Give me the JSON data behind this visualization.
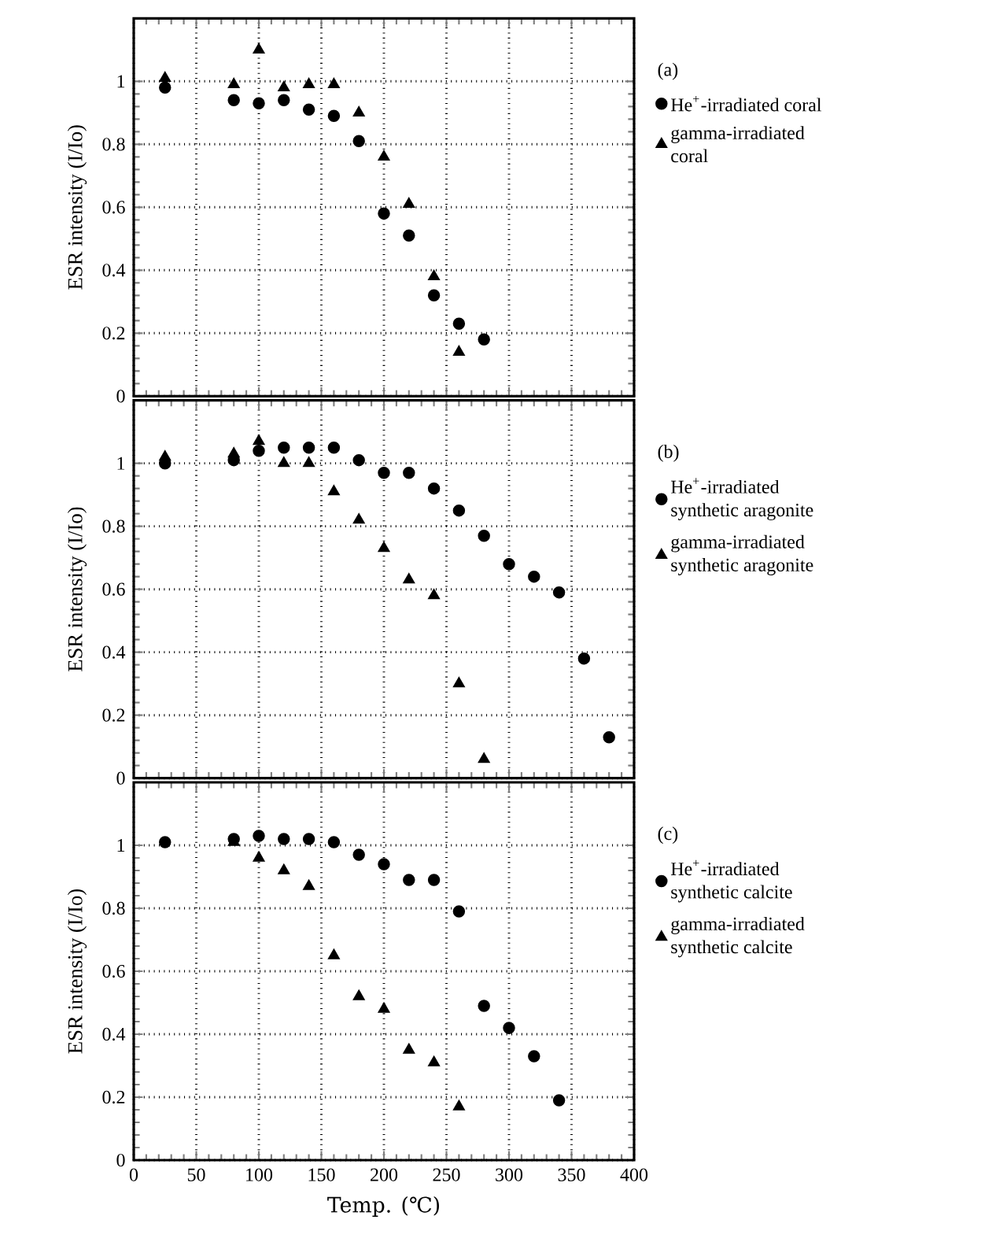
{
  "chart_data": [
    {
      "type": "scatter",
      "annotations": [
        "(a)"
      ],
      "ylabel": "ESR intensity (I/Io)",
      "xlim": [
        0,
        400
      ],
      "ylim": [
        0,
        1.2
      ],
      "xticks": [
        0,
        50,
        100,
        150,
        200,
        250,
        300,
        350,
        400
      ],
      "yticks": [
        0,
        0.2,
        0.4,
        0.6,
        0.8,
        1
      ],
      "tick_labels": "y",
      "grid": true,
      "legend": "right",
      "series": [
        {
          "name": "He$^{+}$-irradiated coral",
          "color": "#000000",
          "marker": "circle",
          "x": [
            25,
            80,
            100,
            120,
            140,
            160,
            180,
            200,
            220,
            240,
            260,
            280
          ],
          "values": [
            0.98,
            0.94,
            0.93,
            0.94,
            0.91,
            0.89,
            0.81,
            0.58,
            0.51,
            0.32,
            0.23,
            0.18
          ]
        },
        {
          "name": "gamma-irradiated coral",
          "color": "#000000",
          "marker": "triangle",
          "x": [
            25,
            80,
            100,
            120,
            140,
            160,
            180,
            200,
            220,
            240,
            260
          ],
          "values": [
            1.01,
            0.99,
            1.1,
            0.98,
            0.99,
            0.99,
            0.9,
            0.76,
            0.61,
            0.38,
            0.14
          ]
        }
      ]
    },
    {
      "type": "scatter",
      "annotations": [
        "(b)"
      ],
      "ylabel": "ESR intensity (I/Io)",
      "xlim": [
        0,
        400
      ],
      "ylim": [
        0,
        1.2
      ],
      "xticks": [
        0,
        50,
        100,
        150,
        200,
        250,
        300,
        350,
        400
      ],
      "yticks": [
        0,
        0.2,
        0.4,
        0.6,
        0.8,
        1
      ],
      "tick_labels": "y",
      "grid": true,
      "legend": "right",
      "series": [
        {
          "name": "He$^{+}$-irradiated synthetic aragonite",
          "color": "#000000",
          "marker": "circle",
          "x": [
            25,
            80,
            100,
            120,
            140,
            160,
            180,
            200,
            220,
            240,
            260,
            280,
            300,
            320,
            340,
            360,
            380
          ],
          "values": [
            1.0,
            1.01,
            1.04,
            1.05,
            1.05,
            1.05,
            1.01,
            0.97,
            0.97,
            0.92,
            0.85,
            0.77,
            0.68,
            0.64,
            0.59,
            0.38,
            0.13
          ]
        },
        {
          "name": "gamma-irradiated synthetic aragonite",
          "color": "#000000",
          "marker": "triangle",
          "x": [
            25,
            80,
            100,
            120,
            140,
            160,
            180,
            200,
            220,
            240,
            260,
            280
          ],
          "values": [
            1.02,
            1.03,
            1.07,
            1.0,
            1.0,
            0.91,
            0.82,
            0.73,
            0.63,
            0.58,
            0.3,
            0.06
          ]
        }
      ]
    },
    {
      "type": "scatter",
      "annotations": [
        "(c)"
      ],
      "xlabel": "Temp. (℃)",
      "ylabel": "ESR intensity (I/Io)",
      "xlim": [
        0,
        400
      ],
      "ylim": [
        0,
        1.2
      ],
      "xticks": [
        0,
        50,
        100,
        150,
        200,
        250,
        300,
        350,
        400
      ],
      "yticks": [
        0,
        0.2,
        0.4,
        0.6,
        0.8,
        1
      ],
      "grid": true,
      "legend": "right",
      "series": [
        {
          "name": "He$^{+}$-irradiated synthetic calcite",
          "color": "#000000",
          "marker": "circle",
          "x": [
            25,
            80,
            100,
            120,
            140,
            160,
            180,
            200,
            220,
            240,
            260,
            280,
            300,
            320,
            340
          ],
          "values": [
            1.01,
            1.02,
            1.03,
            1.02,
            1.02,
            1.01,
            0.97,
            0.94,
            0.89,
            0.89,
            0.79,
            0.49,
            0.42,
            0.33,
            0.19
          ]
        },
        {
          "name": "gamma-irradiated synthetic calcite",
          "color": "#000000",
          "marker": "triangle",
          "x": [
            80,
            100,
            120,
            140,
            160,
            180,
            200,
            220,
            240,
            260
          ],
          "values": [
            1.01,
            0.96,
            0.92,
            0.87,
            0.65,
            0.52,
            0.48,
            0.35,
            0.31,
            0.17
          ]
        }
      ]
    }
  ]
}
